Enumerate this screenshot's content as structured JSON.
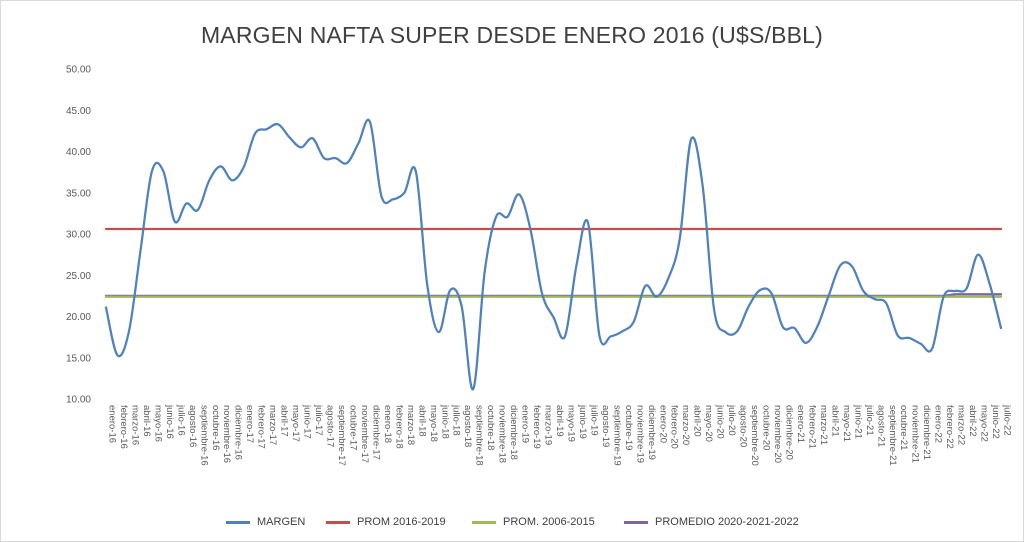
{
  "chart_data": {
    "type": "line",
    "title": "MARGEN NAFTA SUPER DESDE ENERO 2016 (U$S/BBL)",
    "xlabel": "",
    "ylabel": "",
    "ylim": [
      10,
      50
    ],
    "yticks": [
      "10.00",
      "15.00",
      "20.00",
      "25.00",
      "30.00",
      "35.00",
      "40.00",
      "45.00",
      "50.00"
    ],
    "grid": false,
    "legend_position": "bottom",
    "categories": [
      "enero-16",
      "febrero-16",
      "marzo-16",
      "abril-16",
      "mayo-16",
      "junio-16",
      "julio-16",
      "agosto-16",
      "septiembre-16",
      "octubre-16",
      "noviembre-16",
      "diciembre-16",
      "enero-17",
      "febrero-17",
      "marzo-17",
      "abril-17",
      "mayo-17",
      "junio-17",
      "julio-17",
      "agosto-17",
      "septiembre-17",
      "octubre-17",
      "noviembre-17",
      "diciembre-17",
      "enero-18",
      "febrero-18",
      "marzo-18",
      "abril-18",
      "mayo-18",
      "junio-18",
      "julio-18",
      "agosto-18",
      "septiembre-18",
      "octubre-18",
      "noviembre-18",
      "diciembre-18",
      "enero-19",
      "febrero-19",
      "marzo-19",
      "abril-19",
      "mayo-19",
      "junio-19",
      "julio-19",
      "agosto-19",
      "septiembre-19",
      "octubre-19",
      "noviembre-19",
      "diciembre-19",
      "enero-20",
      "febrero-20",
      "marzo-20",
      "abril-20",
      "mayo-20",
      "junio-20",
      "julio-20",
      "agosto-20",
      "septiembre-20",
      "octubre-20",
      "noviembre-20",
      "diciembre-20",
      "enero-21",
      "febrero-21",
      "marzo-21",
      "abril-21",
      "mayo-21",
      "junio-21",
      "julio-21",
      "agosto-21",
      "septiembre-21",
      "octubre-21",
      "noviembre-21",
      "diciembre-21",
      "enero-22",
      "febrero-22",
      "marzo-22",
      "abril-22",
      "mayo-22",
      "junio-22",
      "julio-22"
    ],
    "series": [
      {
        "name": "MARGEN",
        "color": "#4F81BD",
        "values": [
          21.1,
          15.3,
          18.2,
          27.9,
          37.6,
          37.6,
          31.5,
          33.7,
          32.9,
          36.5,
          38.2,
          36.5,
          38.1,
          42.2,
          42.7,
          43.3,
          41.7,
          40.5,
          41.6,
          39.2,
          39.2,
          38.6,
          41.0,
          43.6,
          34.6,
          34.2,
          35.0,
          37.6,
          23.8,
          18.1,
          23.2,
          21.2,
          11.2,
          25.4,
          32.1,
          32.1,
          34.8,
          30.5,
          22.8,
          19.9,
          17.6,
          26.2,
          31.4,
          17.7,
          17.6,
          18.2,
          19.4,
          23.7,
          22.4,
          24.6,
          29.4,
          41.5,
          35.8,
          20.8,
          18.1,
          18.2,
          21.2,
          23.2,
          22.8,
          18.7,
          18.6,
          16.8,
          18.8,
          22.6,
          26.2,
          26.1,
          23.1,
          22.1,
          21.6,
          17.7,
          17.4,
          16.7,
          16.1,
          22.4,
          23.1,
          23.4,
          27.5,
          24.0,
          18.6
        ]
      },
      {
        "name": "PROM 2016-2019",
        "color": "#C0504D",
        "constant": 30.6
      },
      {
        "name": "PROM. 2006-2015",
        "color": "#9BBB59",
        "constant": 22.4
      },
      {
        "name": "PROMEDIO 2020-2021-2022",
        "color": "#8064A2",
        "constant": 22.5,
        "tail": [
          22.7,
          22.7,
          22.7,
          22.7,
          22.7
        ]
      }
    ]
  }
}
